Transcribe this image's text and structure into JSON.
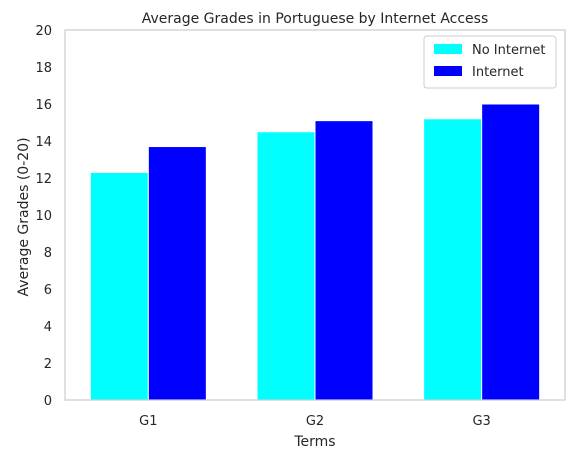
{
  "chart_data": {
    "type": "bar",
    "title": "Average Grades in Portuguese by Internet Access",
    "xlabel": "Terms",
    "ylabel": "Average Grades (0-20)",
    "categories": [
      "G1",
      "G2",
      "G3"
    ],
    "series": [
      {
        "name": "No Internet",
        "values": [
          12.3,
          14.5,
          15.2
        ],
        "color": "#00ffff"
      },
      {
        "name": "Internet",
        "values": [
          13.7,
          15.1,
          16.0
        ],
        "color": "#0000ff"
      }
    ],
    "ylim": [
      0,
      20
    ],
    "yticks": [
      0,
      2,
      4,
      6,
      8,
      10,
      12,
      14,
      16,
      18,
      20
    ],
    "grid": false,
    "legend_position": "top-right"
  }
}
